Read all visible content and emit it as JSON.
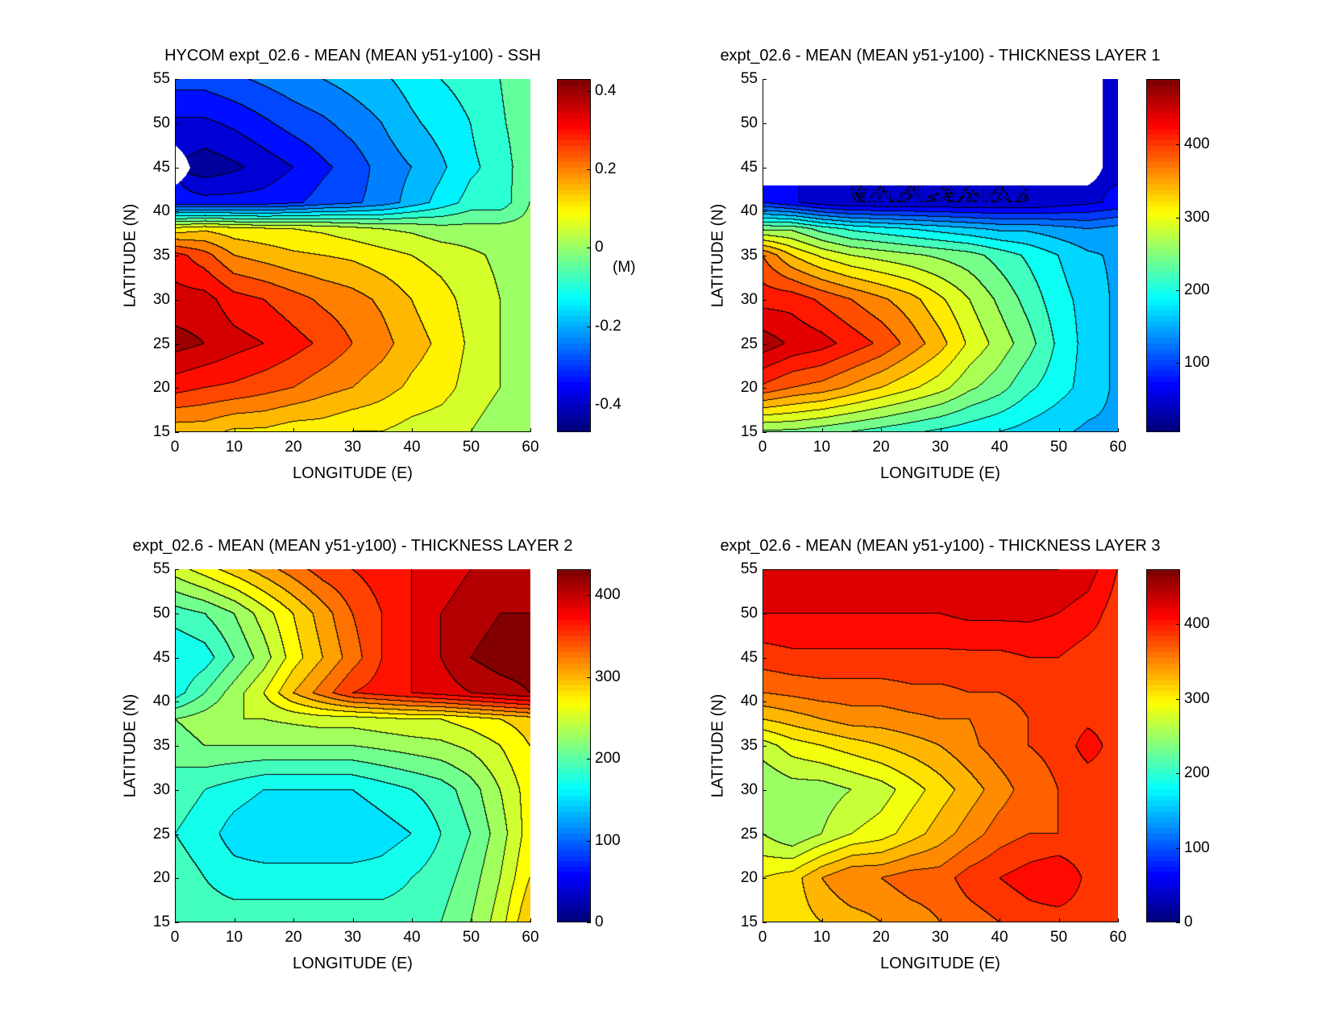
{
  "chart_data": [
    {
      "type": "heatmap",
      "title": "HYCOM expt_02.6 - MEAN (MEAN y51-y100) - SSH",
      "xlabel": "LONGITUDE (E)",
      "ylabel": "LATITUDE (N)",
      "colorbar_label": "(M)",
      "xlim": [
        0,
        60
      ],
      "ylim": [
        15,
        55
      ],
      "xticks": [
        "0",
        "10",
        "20",
        "30",
        "40",
        "50",
        "60"
      ],
      "yticks": [
        "15",
        "20",
        "25",
        "30",
        "35",
        "40",
        "45",
        "50",
        "55"
      ],
      "clim": [
        -0.47,
        0.43
      ],
      "cticks": [
        -0.4,
        -0.2,
        0,
        0.2,
        0.4
      ],
      "ctick_labels": [
        "-0.4",
        "-0.2",
        "0",
        "0.2",
        "0.4"
      ],
      "contour_interval": 0.05,
      "lon": [
        0,
        5,
        10,
        15,
        20,
        25,
        30,
        35,
        40,
        45,
        50,
        55,
        60
      ],
      "lat": [
        15,
        20,
        25,
        30,
        35,
        38,
        41,
        45,
        50,
        55
      ],
      "values": [
        [
          0.15,
          0.15,
          0.12,
          0.12,
          0.1,
          0.1,
          0.08,
          0.08,
          0.06,
          0.05,
          0.03,
          0.0,
          0.0
        ],
        [
          0.3,
          0.28,
          0.27,
          0.25,
          0.23,
          0.2,
          0.18,
          0.15,
          0.12,
          0.1,
          0.06,
          0.03,
          0.0
        ],
        [
          0.4,
          0.38,
          0.35,
          0.33,
          0.3,
          0.27,
          0.23,
          0.2,
          0.15,
          0.12,
          0.07,
          0.03,
          0.0
        ],
        [
          0.35,
          0.35,
          0.3,
          0.28,
          0.25,
          0.22,
          0.2,
          0.17,
          0.13,
          0.1,
          0.06,
          0.03,
          0.0
        ],
        [
          0.3,
          0.25,
          0.18,
          0.16,
          0.14,
          0.13,
          0.12,
          0.1,
          0.08,
          0.06,
          0.04,
          0.02,
          0.0
        ],
        [
          0.1,
          0.12,
          0.1,
          0.09,
          0.08,
          0.07,
          0.05,
          0.03,
          0.02,
          0.0,
          0.0,
          0.0,
          0.0
        ],
        [
          -0.35,
          -0.35,
          -0.35,
          -0.35,
          -0.33,
          -0.3,
          -0.28,
          -0.25,
          -0.2,
          -0.15,
          -0.1,
          -0.1,
          -0.02
        ],
        [
          null,
          -0.45,
          -0.43,
          -0.4,
          -0.37,
          -0.33,
          -0.3,
          -0.25,
          -0.22,
          -0.18,
          -0.13,
          -0.1,
          -0.03
        ],
        [
          -0.38,
          -0.38,
          -0.36,
          -0.33,
          -0.3,
          -0.28,
          -0.25,
          -0.22,
          -0.18,
          -0.15,
          -0.12,
          -0.08,
          -0.03
        ],
        [
          -0.3,
          -0.3,
          -0.28,
          -0.26,
          -0.24,
          -0.22,
          -0.2,
          -0.18,
          -0.15,
          -0.12,
          -0.1,
          -0.07,
          -0.02
        ]
      ]
    },
    {
      "type": "heatmap",
      "title": "expt_02.6 - MEAN (MEAN y51-y100) - THICKNESS LAYER 1",
      "xlabel": "LONGITUDE (E)",
      "ylabel": "LATITUDE (N)",
      "xlim": [
        0,
        60
      ],
      "ylim": [
        15,
        55
      ],
      "xticks": [
        "0",
        "10",
        "20",
        "30",
        "40",
        "50",
        "60"
      ],
      "yticks": [
        "15",
        "20",
        "25",
        "30",
        "35",
        "40",
        "45",
        "50",
        "55"
      ],
      "clim": [
        5,
        490
      ],
      "cticks": [
        100,
        200,
        300,
        400
      ],
      "ctick_labels": [
        "100",
        "200",
        "300",
        "400"
      ],
      "contour_interval": 25,
      "lon": [
        0,
        5,
        10,
        15,
        20,
        25,
        30,
        35,
        40,
        45,
        50,
        55,
        60
      ],
      "lat": [
        15,
        20,
        25,
        30,
        35,
        38,
        41,
        45,
        50,
        55
      ],
      "values": [
        [
          250,
          250,
          240,
          230,
          220,
          210,
          200,
          190,
          180,
          170,
          160,
          150,
          150
        ],
        [
          400,
          380,
          370,
          350,
          330,
          310,
          290,
          260,
          240,
          210,
          190,
          170,
          150
        ],
        [
          470,
          450,
          440,
          420,
          400,
          370,
          340,
          300,
          270,
          240,
          200,
          170,
          150
        ],
        [
          420,
          420,
          400,
          380,
          360,
          340,
          310,
          280,
          250,
          220,
          190,
          170,
          150
        ],
        [
          380,
          330,
          300,
          280,
          270,
          260,
          250,
          240,
          220,
          200,
          180,
          160,
          150
        ],
        [
          250,
          250,
          220,
          200,
          190,
          180,
          170,
          160,
          150,
          150,
          140,
          130,
          140
        ],
        [
          80,
          60,
          40,
          30,
          30,
          30,
          30,
          30,
          30,
          30,
          40,
          50,
          60
        ],
        [
          null,
          null,
          null,
          null,
          null,
          null,
          null,
          null,
          null,
          null,
          null,
          null,
          50
        ],
        [
          null,
          null,
          null,
          null,
          null,
          null,
          null,
          null,
          null,
          null,
          null,
          null,
          50
        ],
        [
          null,
          null,
          null,
          null,
          null,
          null,
          null,
          null,
          null,
          null,
          null,
          null,
          50
        ]
      ]
    },
    {
      "type": "heatmap",
      "title": "expt_02.6 - MEAN (MEAN y51-y100) - THICKNESS LAYER 2",
      "xlabel": "LONGITUDE (E)",
      "ylabel": "LATITUDE (N)",
      "xlim": [
        0,
        60
      ],
      "ylim": [
        15,
        55
      ],
      "xticks": [
        "0",
        "10",
        "20",
        "30",
        "40",
        "50",
        "60"
      ],
      "yticks": [
        "15",
        "20",
        "25",
        "30",
        "35",
        "40",
        "45",
        "50",
        "55"
      ],
      "clim": [
        0,
        432
      ],
      "cticks": [
        0,
        100,
        200,
        300,
        400
      ],
      "ctick_labels": [
        "0",
        "100",
        "200",
        "300",
        "400"
      ],
      "contour_interval": 20,
      "lon": [
        0,
        5,
        10,
        15,
        20,
        25,
        30,
        35,
        40,
        45,
        50,
        55,
        60
      ],
      "lat": [
        15,
        20,
        25,
        30,
        35,
        38,
        41,
        45,
        50,
        55
      ],
      "values": [
        [
          200,
          190,
          190,
          190,
          190,
          190,
          190,
          190,
          190,
          200,
          220,
          250,
          300
        ],
        [
          190,
          180,
          170,
          170,
          170,
          170,
          170,
          170,
          180,
          190,
          210,
          240,
          280
        ],
        [
          180,
          170,
          150,
          140,
          140,
          140,
          140,
          150,
          160,
          180,
          200,
          230,
          270
        ],
        [
          190,
          180,
          170,
          160,
          160,
          160,
          160,
          170,
          180,
          190,
          210,
          240,
          270
        ],
        [
          210,
          220,
          220,
          220,
          220,
          220,
          220,
          225,
          230,
          235,
          245,
          260,
          280
        ],
        [
          220,
          230,
          240,
          240,
          245,
          250,
          250,
          255,
          260,
          260,
          270,
          280,
          290
        ],
        [
          170,
          200,
          230,
          260,
          300,
          330,
          360,
          370,
          380,
          390,
          400,
          410,
          420
        ],
        [
          160,
          170,
          200,
          230,
          270,
          300,
          330,
          360,
          380,
          400,
          420,
          430,
          430
        ],
        [
          190,
          200,
          220,
          250,
          280,
          310,
          340,
          360,
          380,
          400,
          410,
          420,
          420
        ],
        [
          250,
          270,
          290,
          310,
          330,
          350,
          360,
          370,
          380,
          390,
          400,
          410,
          400
        ]
      ]
    },
    {
      "type": "heatmap",
      "title": "expt_02.6 - MEAN (MEAN y51-y100) - THICKNESS LAYER 3",
      "xlabel": "LONGITUDE (E)",
      "ylabel": "LATITUDE (N)",
      "xlim": [
        0,
        60
      ],
      "ylim": [
        15,
        55
      ],
      "xticks": [
        "0",
        "10",
        "20",
        "30",
        "40",
        "50",
        "60"
      ],
      "yticks": [
        "15",
        "20",
        "25",
        "30",
        "35",
        "40",
        "45",
        "50",
        "55"
      ],
      "clim": [
        0,
        474
      ],
      "cticks": [
        0,
        100,
        200,
        300,
        400
      ],
      "ctick_labels": [
        "0",
        "100",
        "200",
        "300",
        "400"
      ],
      "contour_interval": 20,
      "lon": [
        0,
        5,
        10,
        15,
        20,
        25,
        30,
        35,
        40,
        45,
        50,
        55,
        60
      ],
      "lat": [
        15,
        20,
        25,
        30,
        35,
        38,
        41,
        45,
        50,
        55
      ],
      "values": [
        [
          300,
          310,
          320,
          330,
          340,
          350,
          360,
          370,
          380,
          390,
          390,
          390,
          390
        ],
        [
          300,
          310,
          340,
          360,
          360,
          370,
          370,
          390,
          400,
          410,
          420,
          395,
          390
        ],
        [
          260,
          240,
          260,
          280,
          290,
          310,
          330,
          350,
          370,
          380,
          380,
          385,
          390
        ],
        [
          240,
          250,
          250,
          260,
          270,
          290,
          310,
          330,
          350,
          370,
          380,
          385,
          390
        ],
        [
          270,
          290,
          300,
          310,
          320,
          330,
          340,
          355,
          370,
          380,
          385,
          410,
          390
        ],
        [
          320,
          330,
          340,
          350,
          350,
          355,
          360,
          360,
          370,
          380,
          385,
          395,
          390
        ],
        [
          360,
          365,
          370,
          370,
          370,
          375,
          375,
          380,
          380,
          385,
          390,
          390,
          390
        ],
        [
          390,
          395,
          395,
          395,
          395,
          395,
          395,
          395,
          395,
          400,
          400,
          390,
          390
        ],
        [
          420,
          420,
          420,
          420,
          420,
          420,
          420,
          425,
          425,
          425,
          420,
          410,
          390
        ],
        [
          440,
          440,
          440,
          440,
          440,
          440,
          440,
          440,
          440,
          440,
          440,
          430,
          400
        ]
      ]
    }
  ]
}
